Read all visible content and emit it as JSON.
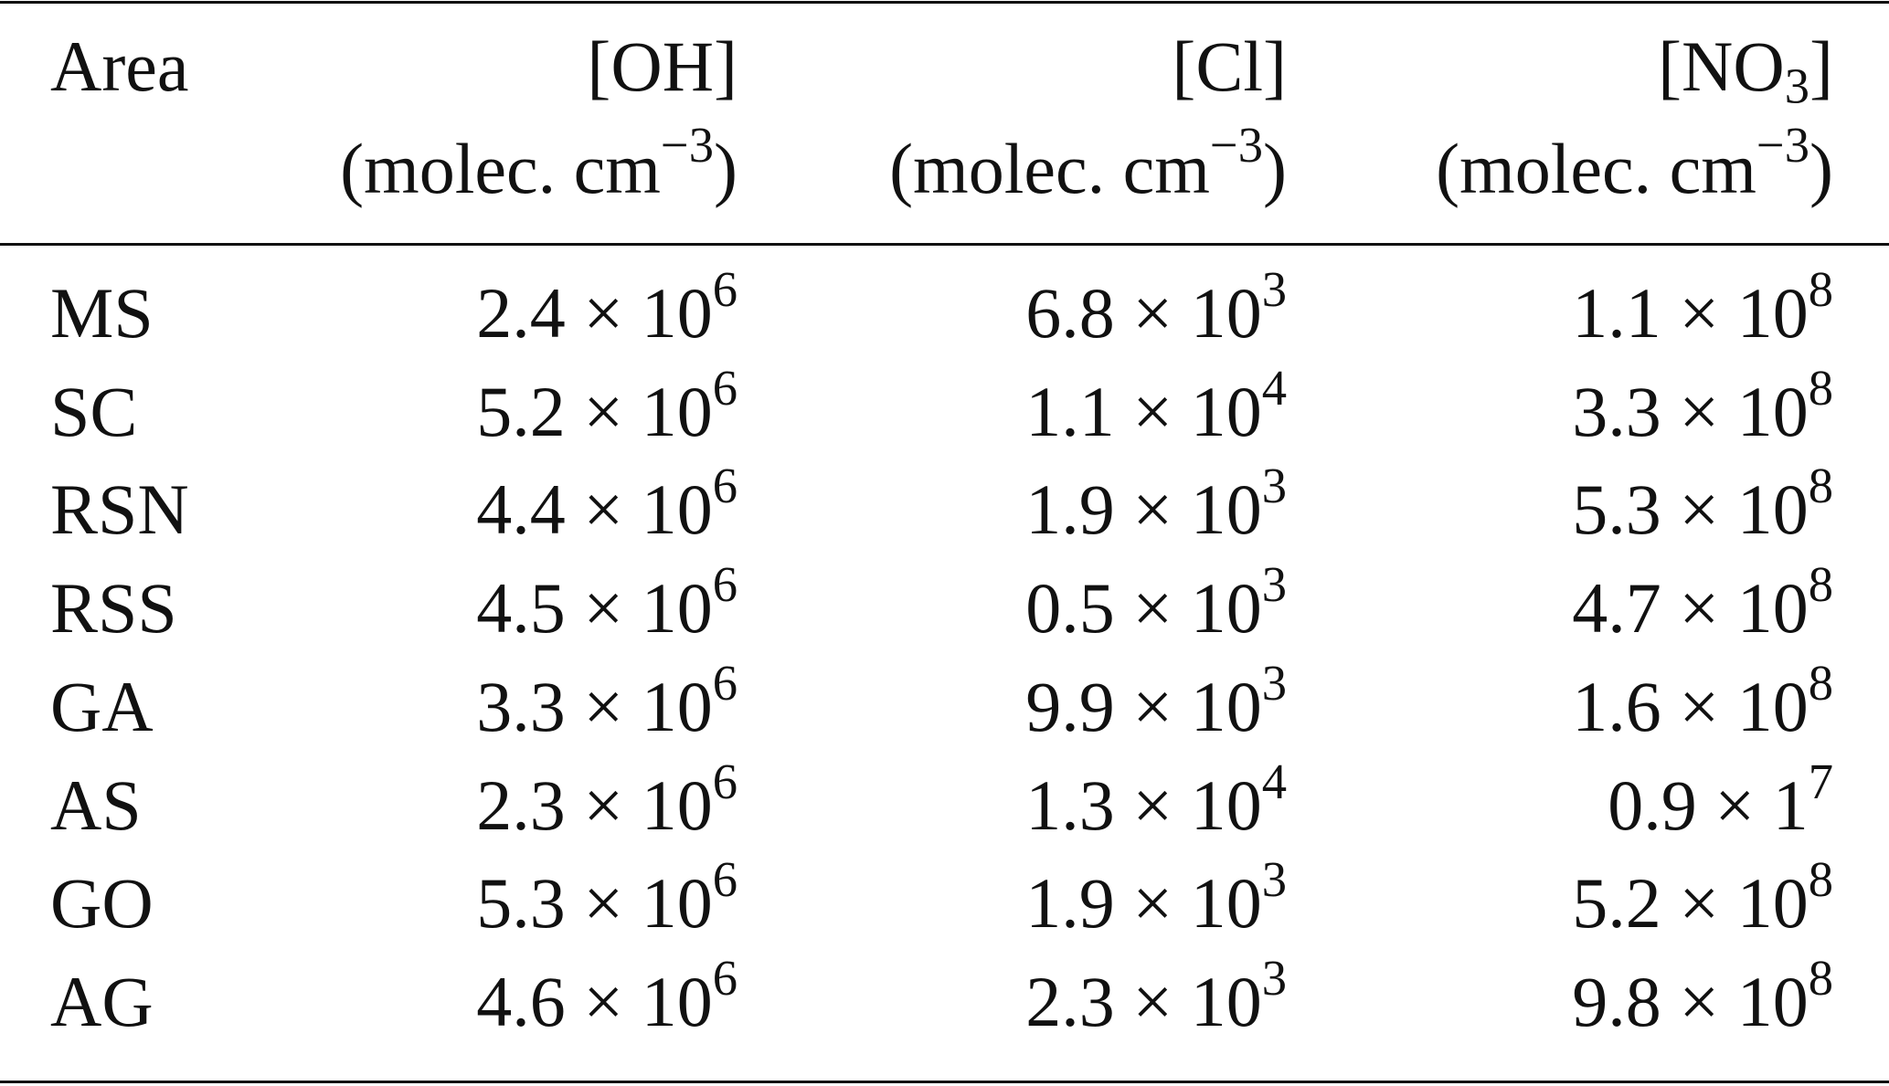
{
  "table": {
    "header": [
      {
        "name": "Area"
      },
      {
        "name": "[OH]",
        "unit": "(molec. cm",
        "unit_exp": "−3",
        "unit_close": ")"
      },
      {
        "name": "[Cl]",
        "unit": "(molec. cm",
        "unit_exp": "−3",
        "unit_close": ")"
      },
      {
        "name": "[NO",
        "name_sub": "3",
        "name_close": "]",
        "unit": "(molec. cm",
        "unit_exp": "−3",
        "unit_close": ")"
      }
    ],
    "rows": [
      [
        "MS",
        {
          "coef": "2.4 × 10",
          "exp": "6"
        },
        {
          "coef": "6.8 × 10",
          "exp": "3"
        },
        {
          "coef": "1.1 × 10",
          "exp": "8"
        }
      ],
      [
        "SC",
        {
          "coef": "5.2 × 10",
          "exp": "6"
        },
        {
          "coef": "1.1 × 10",
          "exp": "4"
        },
        {
          "coef": "3.3 × 10",
          "exp": "8"
        }
      ],
      [
        "RSN",
        {
          "coef": "4.4 × 10",
          "exp": "6"
        },
        {
          "coef": "1.9 × 10",
          "exp": "3"
        },
        {
          "coef": "5.3 × 10",
          "exp": "8"
        }
      ],
      [
        "RSS",
        {
          "coef": "4.5 × 10",
          "exp": "6"
        },
        {
          "coef": "0.5 × 10",
          "exp": "3"
        },
        {
          "coef": "4.7 × 10",
          "exp": "8"
        }
      ],
      [
        "GA",
        {
          "coef": "3.3 × 10",
          "exp": "6"
        },
        {
          "coef": "9.9 × 10",
          "exp": "3"
        },
        {
          "coef": "1.6 × 10",
          "exp": "8"
        }
      ],
      [
        "AS",
        {
          "coef": "2.3 × 10",
          "exp": "6"
        },
        {
          "coef": "1.3 × 10",
          "exp": "4"
        },
        {
          "coef": "0.9 × 1",
          "exp": "7"
        }
      ],
      [
        "GO",
        {
          "coef": "5.3 × 10",
          "exp": "6"
        },
        {
          "coef": "1.9 × 10",
          "exp": "3"
        },
        {
          "coef": "5.2 × 10",
          "exp": "8"
        }
      ],
      [
        "AG",
        {
          "coef": "4.6 × 10",
          "exp": "6"
        },
        {
          "coef": "2.3 × 10",
          "exp": "3"
        },
        {
          "coef": "9.8 × 10",
          "exp": "8"
        }
      ]
    ]
  }
}
